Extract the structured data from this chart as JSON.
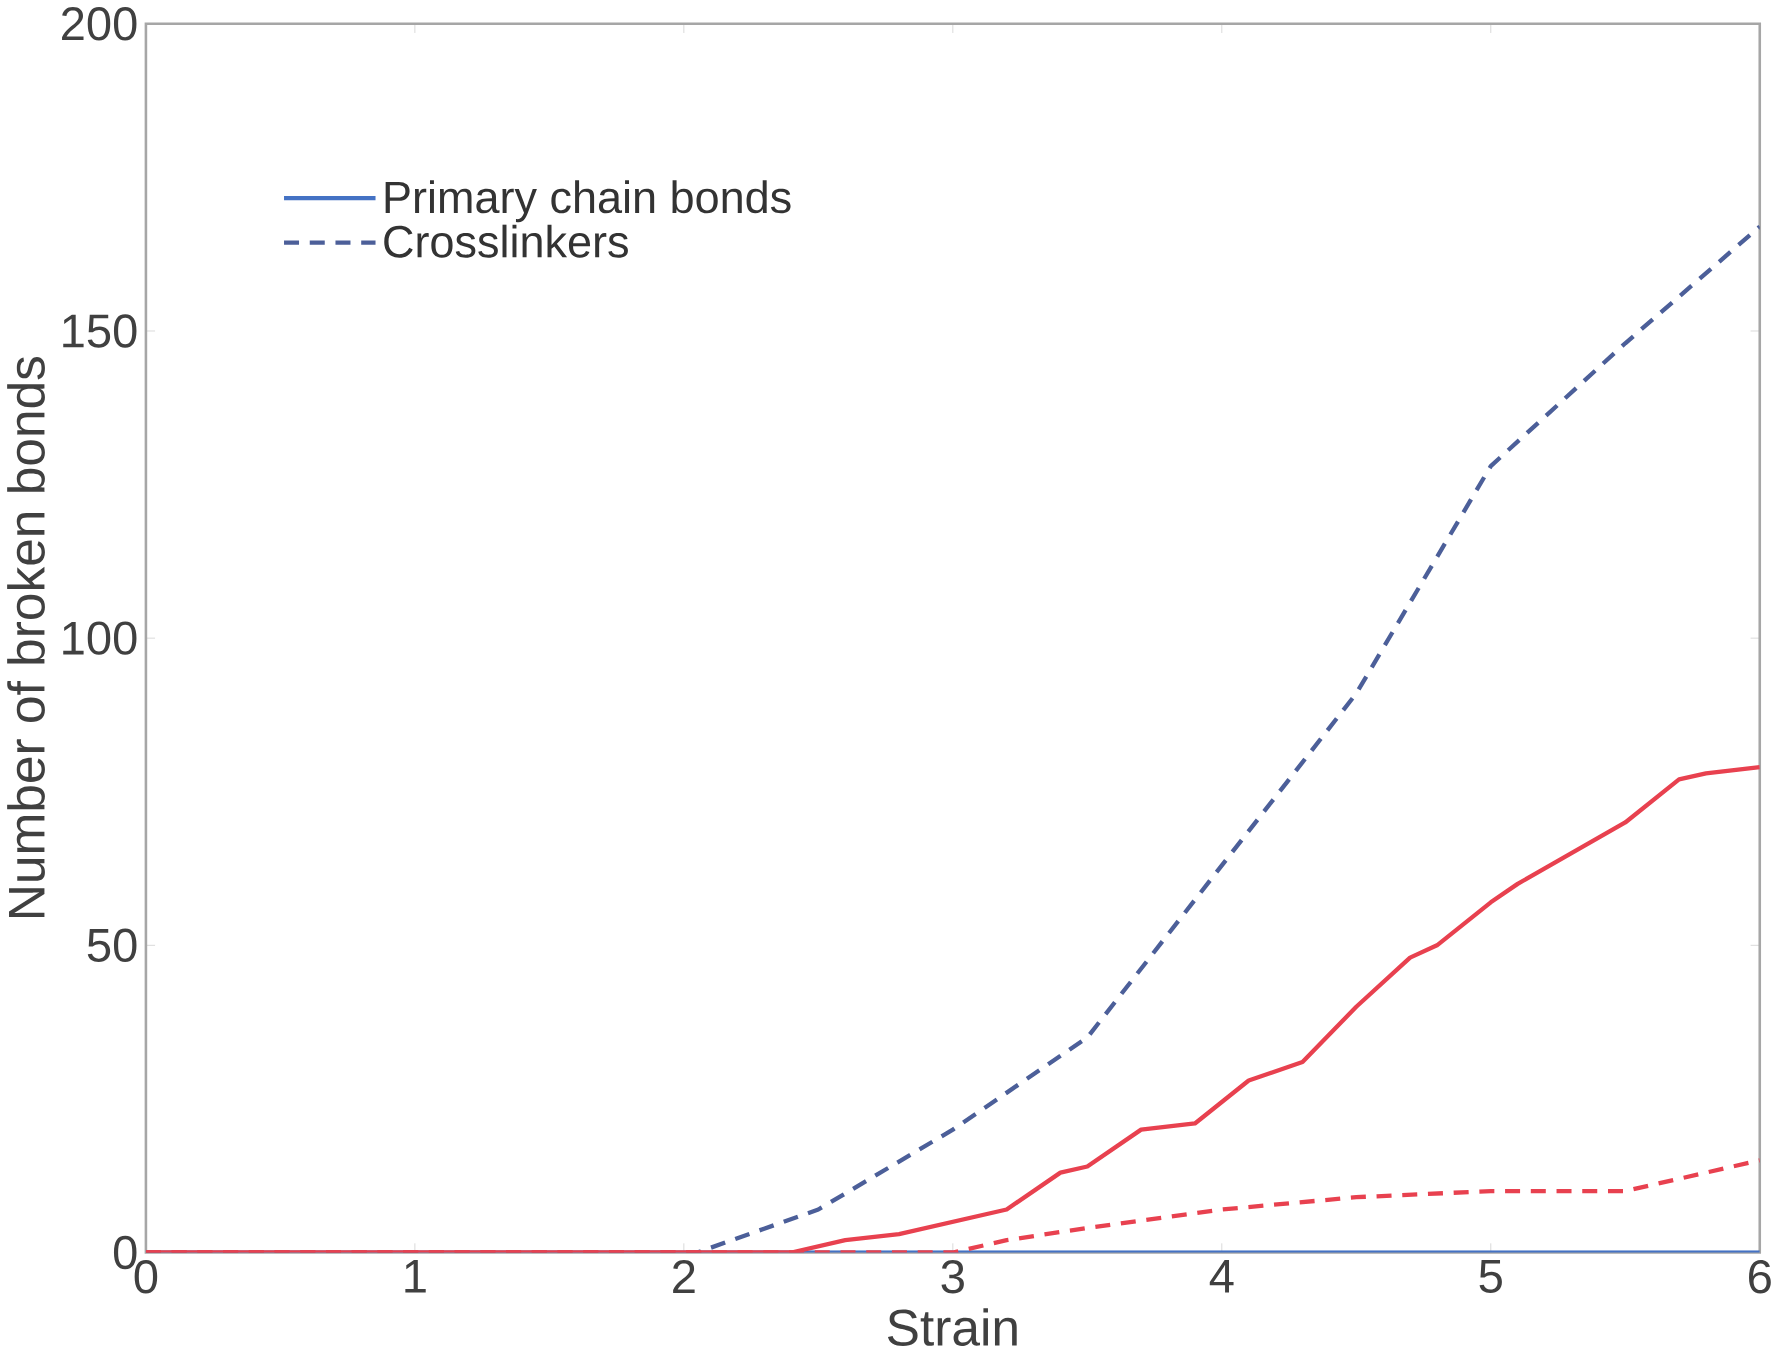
{
  "chart_data": {
    "type": "line",
    "xlabel": "Strain",
    "ylabel": "Number of broken bonds",
    "xlim": [
      0,
      6
    ],
    "ylim": [
      0,
      200
    ],
    "xticks": [
      0,
      1,
      2,
      3,
      4,
      5,
      6
    ],
    "yticks": [
      0,
      50,
      100,
      150,
      200
    ],
    "legend": "top left",
    "grid": false,
    "marker": "none",
    "series": [
      {
        "name": "Primary chain bonds",
        "color": "#4472c4",
        "line_style": "solid",
        "x": [
          0,
          6
        ],
        "values": [
          0,
          0
        ]
      },
      {
        "name": "Crosslinkers",
        "color": "#4c5f99",
        "line_style": "dashed",
        "x": [
          0,
          2.05,
          2.5,
          3,
          3.5,
          4,
          4.5,
          5,
          5.5,
          6
        ],
        "values": [
          0,
          0,
          7,
          20,
          35,
          63,
          91,
          128,
          148,
          167
        ]
      },
      {
        "color": "#e8414f",
        "line_style": "solid",
        "x": [
          0,
          2.4,
          2.6,
          2.8,
          3,
          3.2,
          3.4,
          3.5,
          3.7,
          3.9,
          4.1,
          4.3,
          4.5,
          4.7,
          4.8,
          5,
          5.1,
          5.3,
          5.5,
          5.7,
          5.8,
          6
        ],
        "values": [
          0,
          0,
          2,
          3,
          5,
          7,
          13,
          14,
          20,
          21,
          28,
          31,
          40,
          48,
          50,
          57,
          60,
          65,
          70,
          77,
          78,
          79
        ]
      },
      {
        "color": "#e8414f",
        "line_style": "dashed",
        "x": [
          0,
          3,
          3.2,
          3.5,
          4,
          4.5,
          5,
          5.5,
          5.8,
          6
        ],
        "values": [
          0,
          0,
          2,
          4,
          7,
          9,
          10,
          10,
          13,
          15
        ]
      }
    ]
  }
}
